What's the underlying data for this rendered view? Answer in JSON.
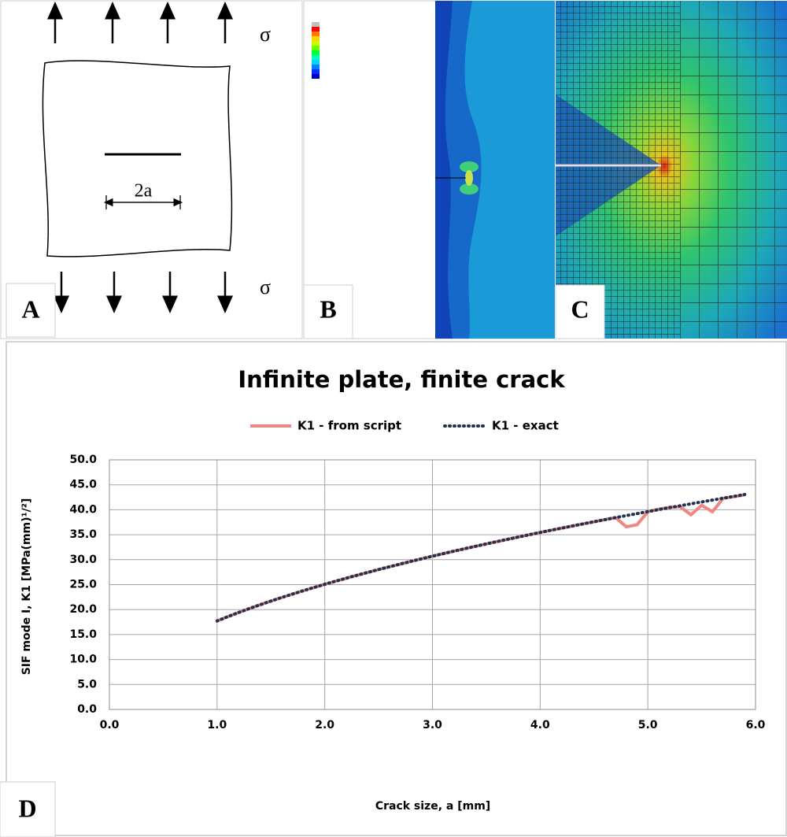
{
  "panel_labels": [
    "A",
    "B",
    "C",
    "D"
  ],
  "diagram": {
    "stress_label_top": "σ",
    "stress_label_bottom": "σ",
    "crack_length_label": "2a"
  },
  "chart_data": {
    "type": "line",
    "title": "Infinite plate, finite crack",
    "x_label": "Crack size, a [mm]",
    "y_label": "SIF mode I, K1 [MPa(mm)¹/²]",
    "x": [
      1.0,
      1.1,
      1.2,
      1.3,
      1.4,
      1.5,
      1.6,
      1.7,
      1.8,
      1.9,
      2.0,
      2.1,
      2.2,
      2.3,
      2.4,
      2.5,
      2.6,
      2.7,
      2.8,
      2.9,
      3.0,
      3.1,
      3.2,
      3.3,
      3.4,
      3.5,
      3.6,
      3.7,
      3.8,
      3.9,
      4.0,
      4.1,
      4.2,
      4.3,
      4.4,
      4.5,
      4.6,
      4.7,
      4.8,
      4.9,
      5.0,
      5.1,
      5.2,
      5.3,
      5.4,
      5.5,
      5.6,
      5.7,
      5.8,
      5.9
    ],
    "series": [
      {
        "name": "K1 - from script",
        "color": "#f28580",
        "style": "solid",
        "values": [
          17.72,
          18.59,
          19.42,
          20.21,
          20.97,
          21.71,
          22.42,
          23.11,
          23.78,
          24.43,
          25.07,
          25.69,
          26.29,
          26.88,
          27.46,
          28.02,
          28.58,
          29.12,
          29.66,
          30.18,
          30.7,
          31.21,
          31.71,
          32.2,
          32.68,
          33.16,
          33.63,
          34.09,
          34.55,
          35.0,
          35.45,
          35.89,
          36.32,
          36.75,
          37.18,
          37.6,
          38.01,
          38.43,
          36.6,
          37.0,
          39.6,
          40.1,
          40.5,
          40.6,
          39.0,
          40.9,
          39.6,
          42.3,
          42.6,
          43.0
        ]
      },
      {
        "name": "K1 - exact",
        "color": "#1f3350",
        "style": "dotted",
        "values": [
          17.72,
          18.59,
          19.42,
          20.21,
          20.97,
          21.71,
          22.42,
          23.11,
          23.78,
          24.43,
          25.07,
          25.69,
          26.29,
          26.88,
          27.46,
          28.02,
          28.58,
          29.12,
          29.66,
          30.18,
          30.7,
          31.21,
          31.71,
          32.2,
          32.68,
          33.16,
          33.63,
          34.09,
          34.55,
          35.0,
          35.45,
          35.89,
          36.32,
          36.75,
          37.18,
          37.6,
          38.01,
          38.43,
          38.83,
          39.23,
          39.63,
          40.03,
          40.42,
          40.8,
          41.19,
          41.57,
          41.94,
          42.32,
          42.69,
          43.05
        ]
      }
    ],
    "xlim": [
      0,
      6
    ],
    "xticks": [
      {
        "value": 0,
        "label": "0.0"
      },
      {
        "value": 1,
        "label": "1.0"
      },
      {
        "value": 2,
        "label": "2.0"
      },
      {
        "value": 3,
        "label": "3.0"
      },
      {
        "value": 4,
        "label": "4.0"
      },
      {
        "value": 5,
        "label": "5.0"
      },
      {
        "value": 6,
        "label": "6.0"
      }
    ],
    "ylim": [
      0,
      50
    ],
    "yticks": [
      {
        "value": 0,
        "label": "0.0"
      },
      {
        "value": 5,
        "label": "5.0"
      },
      {
        "value": 10,
        "label": "10.0"
      },
      {
        "value": 15,
        "label": "15.0"
      },
      {
        "value": 20,
        "label": "20.0"
      },
      {
        "value": 25,
        "label": "25.0"
      },
      {
        "value": 30,
        "label": "30.0"
      },
      {
        "value": 35,
        "label": "35.0"
      },
      {
        "value": 40,
        "label": "40.0"
      },
      {
        "value": 45,
        "label": "45.0"
      },
      {
        "value": 50,
        "label": "50.0"
      }
    ],
    "grid": true,
    "legend": "top"
  }
}
